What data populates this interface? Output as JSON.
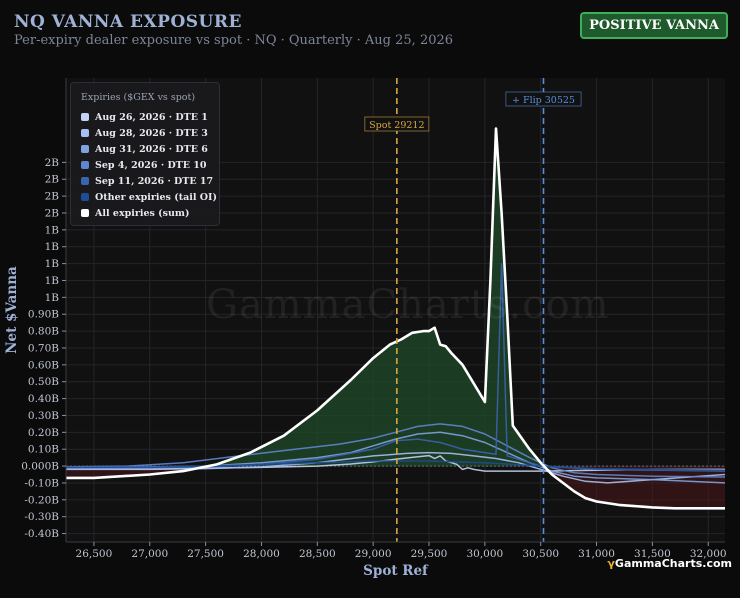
{
  "header": {
    "title": "NQ VANNA EXPOSURE",
    "subtitle": "Per-expiry dealer exposure vs spot · NQ · Quarterly · Aug 25, 2026",
    "badge": "POSITIVE VANNA"
  },
  "watermark": "GammaCharts.com",
  "brand": "GammaCharts.com",
  "legend": {
    "title": "Expiries ($GEX vs spot)"
  },
  "colors": {
    "background": "#0b0b0b",
    "positive_fill": "#1f4a2a",
    "negative_fill": "#4a1818",
    "sum_line": "#ffffff",
    "spot_line": "#d9a640",
    "flip_line": "#5a8fd6",
    "badge_bg": "#1e5a2c"
  },
  "chart_data": {
    "type": "line",
    "xlabel": "Spot Ref",
    "ylabel": "Net $Vanna",
    "xlim": [
      26250,
      32150
    ],
    "ylim": [
      -0.45,
      2.3
    ],
    "x_ticks": [
      26500,
      27000,
      27500,
      28000,
      28500,
      29000,
      29500,
      30000,
      30500,
      31000,
      31500,
      32000
    ],
    "x_tick_labels": [
      "26,500",
      "27,000",
      "27,500",
      "28,000",
      "28,500",
      "29,000",
      "29,500",
      "30,000",
      "30,500",
      "31,000",
      "31,500",
      "32,000"
    ],
    "y_ticks": [
      -0.4,
      -0.3,
      -0.2,
      -0.1,
      0,
      0.1,
      0.2,
      0.3,
      0.4,
      0.5,
      0.6,
      0.7,
      0.8,
      0.9,
      1.0,
      1.1,
      1.2,
      1.3,
      1.4,
      1.5,
      1.6,
      1.7,
      1.8
    ],
    "y_tick_labels": [
      "-0.40B",
      "-0.30B",
      "-0.20B",
      "-0.10B",
      "0.000B",
      "0.10B",
      "0.20B",
      "0.30B",
      "0.40B",
      "0.50B",
      "0.60B",
      "0.70B",
      "0.80B",
      "0.90B",
      "1B",
      "1B",
      "1B",
      "1B",
      "1B",
      "2B",
      "2B",
      "2B",
      "2B"
    ],
    "grid": true,
    "legend_position": "top-left",
    "annotations": [
      {
        "label": "Spot 29212",
        "x": 29212,
        "color": "#d9a640"
      },
      {
        "label": "+ Flip 30525",
        "x": 30525,
        "color": "#5a8fd6"
      }
    ],
    "series": [
      {
        "name": "Aug 26, 2026 · DTE 1",
        "color": "#c3d3f2",
        "x": [
          26250,
          27000,
          27500,
          28000,
          28500,
          28800,
          29000,
          29200,
          29400,
          29500,
          29550,
          29600,
          29650,
          29700,
          29750,
          29800,
          29850,
          29900,
          29950,
          30000,
          30500,
          31000,
          31500,
          32150
        ],
        "y": [
          -0.015,
          -0.015,
          -0.012,
          -0.008,
          0.0,
          0.012,
          0.025,
          0.04,
          0.055,
          0.062,
          0.045,
          0.06,
          0.03,
          0.02,
          0.01,
          -0.02,
          -0.01,
          -0.02,
          -0.025,
          -0.03,
          -0.03,
          -0.025,
          -0.02,
          -0.02
        ]
      },
      {
        "name": "Aug 28, 2026 · DTE 3",
        "color": "#a8bff0",
        "x": [
          26250,
          27000,
          27500,
          28000,
          28500,
          29000,
          29300,
          29500,
          29700,
          29900,
          30100,
          30300,
          30500,
          30700,
          30900,
          31100,
          31500,
          32150
        ],
        "y": [
          -0.02,
          -0.02,
          -0.015,
          -0.005,
          0.02,
          0.06,
          0.075,
          0.08,
          0.075,
          0.06,
          0.045,
          0.02,
          -0.02,
          -0.06,
          -0.09,
          -0.1,
          -0.08,
          -0.05
        ]
      },
      {
        "name": "Aug 31, 2026 · DTE 6",
        "color": "#7fa2df",
        "x": [
          26250,
          27000,
          27500,
          28000,
          28500,
          28800,
          29000,
          29200,
          29400,
          29600,
          29800,
          30000,
          30200,
          30400,
          30600,
          30800,
          31000,
          31500,
          32150
        ],
        "y": [
          -0.01,
          -0.005,
          0.0,
          0.02,
          0.05,
          0.08,
          0.12,
          0.16,
          0.19,
          0.2,
          0.18,
          0.14,
          0.08,
          0.02,
          -0.03,
          -0.06,
          -0.07,
          -0.08,
          -0.1
        ]
      },
      {
        "name": "Sep 4, 2026 · DTE 10",
        "color": "#5f86d0",
        "x": [
          26250,
          26800,
          27300,
          27800,
          28300,
          28700,
          29000,
          29200,
          29400,
          29600,
          29800,
          30000,
          30200,
          30400,
          30600,
          30800,
          31000,
          31500,
          32150
        ],
        "y": [
          -0.005,
          0.0,
          0.02,
          0.06,
          0.1,
          0.13,
          0.165,
          0.2,
          0.235,
          0.25,
          0.235,
          0.19,
          0.12,
          0.05,
          -0.01,
          -0.04,
          -0.05,
          -0.06,
          -0.065
        ]
      },
      {
        "name": "Sep 11, 2026 · DTE 17",
        "color": "#3a64ad",
        "x": [
          26250,
          27000,
          27500,
          28000,
          28500,
          29000,
          29200,
          29400,
          29600,
          29800,
          30000,
          30100,
          30150,
          30200,
          30300,
          30500,
          31000,
          32150
        ],
        "y": [
          -0.01,
          -0.01,
          -0.005,
          0.01,
          0.04,
          0.1,
          0.15,
          0.16,
          0.14,
          0.1,
          0.08,
          0.07,
          1.2,
          0.06,
          0.04,
          0.0,
          -0.02,
          -0.03
        ]
      },
      {
        "name": "Other expiries (tail OI)",
        "color": "#1d4d95",
        "x": [
          26250,
          27000,
          27500,
          28000,
          28500,
          29000,
          29500,
          30000,
          30500,
          31000,
          31500,
          32150
        ],
        "y": [
          -0.008,
          -0.006,
          0.0,
          0.01,
          0.02,
          0.03,
          0.03,
          0.02,
          0.0,
          -0.015,
          -0.02,
          -0.025
        ]
      },
      {
        "name": "All expiries (sum)",
        "color": "#ffffff",
        "x": [
          26250,
          26500,
          27000,
          27300,
          27600,
          27900,
          28200,
          28500,
          28800,
          29000,
          29150,
          29250,
          29350,
          29450,
          29500,
          29550,
          29600,
          29650,
          29700,
          29800,
          29900,
          30000,
          30050,
          30100,
          30150,
          30200,
          30250,
          30400,
          30500,
          30600,
          30700,
          30800,
          30900,
          31000,
          31200,
          31400,
          31500,
          31700,
          32000,
          32150
        ],
        "y": [
          -0.07,
          -0.07,
          -0.05,
          -0.03,
          0.01,
          0.08,
          0.18,
          0.33,
          0.51,
          0.64,
          0.72,
          0.75,
          0.79,
          0.8,
          0.8,
          0.82,
          0.72,
          0.71,
          0.67,
          0.6,
          0.49,
          0.38,
          1.1,
          2.0,
          1.5,
          0.9,
          0.24,
          0.1,
          0.02,
          -0.05,
          -0.1,
          -0.15,
          -0.19,
          -0.21,
          -0.23,
          -0.24,
          -0.245,
          -0.25,
          -0.25,
          -0.25
        ]
      }
    ]
  }
}
